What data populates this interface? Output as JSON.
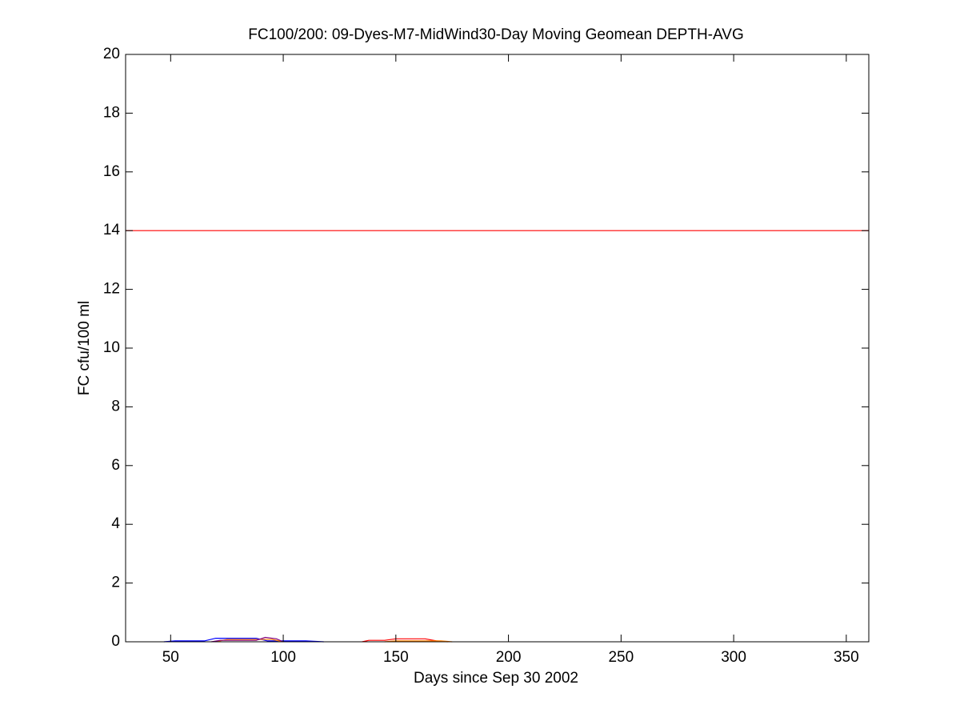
{
  "chart_data": {
    "type": "line",
    "title": "FC100/200: 09-Dyes-M7-MidWind30-Day Moving Geomean DEPTH-AVG",
    "x_label": "Days since Sep 30 2002",
    "y_label": "FC cfu/100 ml",
    "xlim": [
      30,
      360
    ],
    "ylim": [
      0,
      20
    ],
    "xticks": [
      50,
      100,
      150,
      200,
      250,
      300,
      350
    ],
    "yticks": [
      0,
      2,
      4,
      6,
      8,
      10,
      12,
      14,
      16,
      18,
      20
    ],
    "series": [
      {
        "color": "#ff0000",
        "x": [
          30,
          360
        ],
        "values": [
          14,
          14
        ]
      },
      {
        "color": "#0000ff",
        "x": [
          47,
          52,
          65,
          70,
          78,
          88,
          93,
          97,
          110,
          118
        ],
        "values": [
          0,
          0.03,
          0.03,
          0.12,
          0.12,
          0.12,
          0.03,
          0.03,
          0.03,
          0
        ]
      },
      {
        "color": "#ff8000",
        "x": [
          70,
          75,
          85,
          95,
          100
        ],
        "values": [
          0,
          0.08,
          0.08,
          0.08,
          0
        ]
      },
      {
        "color": "#800080",
        "x": [
          68,
          72,
          88,
          92,
          97,
          100
        ],
        "values": [
          0,
          0.05,
          0.05,
          0.15,
          0.1,
          0
        ]
      },
      {
        "color": "#ff0000",
        "x": [
          135,
          138,
          145,
          150,
          163,
          168,
          173
        ],
        "values": [
          0,
          0.05,
          0.05,
          0.1,
          0.1,
          0.03,
          0
        ]
      },
      {
        "color": "#ff8000",
        "x": [
          145,
          150,
          165,
          170,
          175
        ],
        "values": [
          0,
          0.03,
          0.03,
          0.03,
          0
        ]
      }
    ]
  }
}
